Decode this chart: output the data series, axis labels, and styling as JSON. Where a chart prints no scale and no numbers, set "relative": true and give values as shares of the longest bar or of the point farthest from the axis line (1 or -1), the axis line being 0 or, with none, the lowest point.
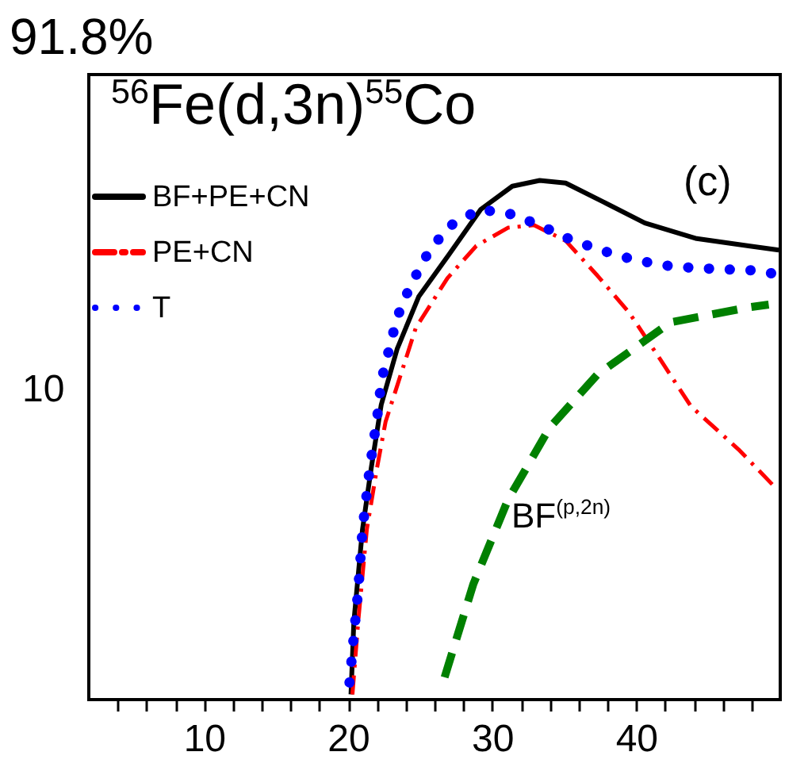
{
  "chart_data": {
    "type": "line",
    "title": "91.8%",
    "relative": true,
    "annotations": [
      "$^{56}$Fe(d,3n)$^{55}$Co",
      "(c)",
      "10",
      "BF$^{(p,2n)}$"
    ],
    "grid": false,
    "legend": "top left",
    "xlim": [
      2,
      50
    ],
    "xticks": [
      {
        "value": 4,
        "label": null
      },
      {
        "value": 6,
        "label": null
      },
      {
        "value": 8,
        "label": null
      },
      10,
      {
        "value": 12,
        "label": null
      },
      {
        "value": 14,
        "label": null
      },
      {
        "value": 16,
        "label": null
      },
      {
        "value": 18,
        "label": null
      },
      20,
      {
        "value": 22,
        "label": null
      },
      {
        "value": 24,
        "label": null
      },
      {
        "value": 26,
        "label": null
      },
      {
        "value": 28,
        "label": null
      },
      30,
      {
        "value": 32,
        "label": null
      },
      {
        "value": 34,
        "label": null
      },
      {
        "value": 36,
        "label": null
      },
      {
        "value": 38,
        "label": null
      },
      40,
      {
        "value": 42,
        "label": null
      },
      {
        "value": 44,
        "label": null
      },
      {
        "value": 46,
        "label": null
      },
      {
        "value": 48,
        "label": null
      }
    ],
    "series": [
      {
        "name": "BF+PE+CN",
        "color": "#000000",
        "line_style": "solid",
        "x": [
          20.2,
          20.4,
          21.0,
          21.6,
          22.3,
          23.4,
          24.9,
          27.0,
          29.2,
          31.4,
          33.3,
          35.1,
          37.7,
          40.6,
          44.2,
          47.8,
          49.9
        ],
        "values": [
          0.01,
          0.15,
          0.328,
          0.445,
          0.568,
          0.675,
          0.776,
          0.857,
          0.944,
          0.989,
          1,
          0.995,
          0.959,
          0.918,
          0.888,
          0.874,
          0.866
        ]
      },
      {
        "name": "PE+CN",
        "color": "#ff0000",
        "line_style": "dashdot",
        "x": [
          20.3,
          20.7,
          21.3,
          22.0,
          22.6,
          24.7,
          26.9,
          28.9,
          31.1,
          32.9,
          35.1,
          37.3,
          39.5,
          41.7,
          43.8,
          47.1,
          49.5
        ],
        "values": [
          0.01,
          0.15,
          0.328,
          0.445,
          0.535,
          0.716,
          0.812,
          0.874,
          0.909,
          0.914,
          0.884,
          0.817,
          0.746,
          0.654,
          0.565,
          0.482,
          0.413
        ]
      },
      {
        "name": "T",
        "color": "#0000ff",
        "line_style": "dotted",
        "x": [
          20.1,
          20.3,
          20.7,
          21.0,
          21.5,
          22.1,
          22.3,
          23.4,
          24.3,
          25.4,
          26.9,
          29.1,
          31.1,
          33.3,
          35.3,
          37.5,
          39.5,
          41.7,
          43.8,
          45.8,
          48.0,
          49.9
        ],
        "values": [
          0.033,
          0.094,
          0.21,
          0.328,
          0.445,
          0.561,
          0.614,
          0.736,
          0.796,
          0.853,
          0.91,
          0.944,
          0.937,
          0.914,
          0.888,
          0.866,
          0.85,
          0.837,
          0.832,
          0.829,
          0.827,
          0.819
        ]
      },
      {
        "color": "#008000",
        "line_style": "dashed",
        "x": [
          26.7,
          28.7,
          31.1,
          34.0,
          37.3,
          42.4,
          47.9,
          49.2
        ],
        "values": [
          0.043,
          0.223,
          0.385,
          0.524,
          0.626,
          0.727,
          0.756,
          0.761
        ]
      }
    ]
  }
}
